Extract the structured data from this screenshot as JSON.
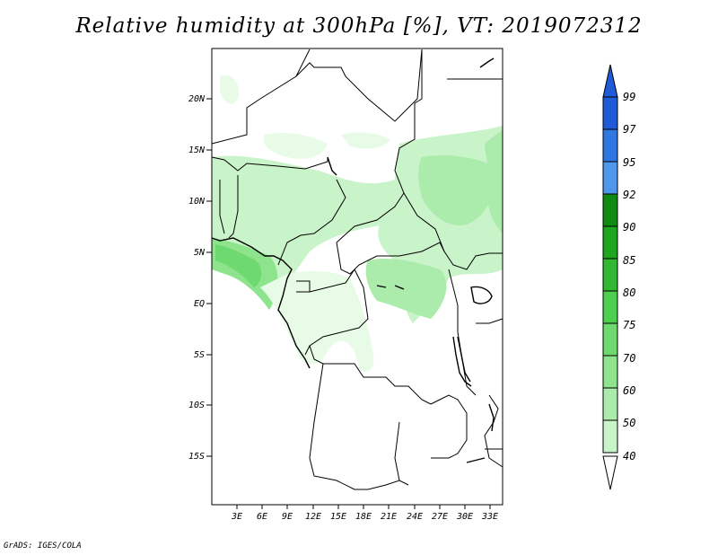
{
  "title": "Relative humidity at 300hPa [%], VT: 2019072312",
  "credit": "GrADS: IGES/COLA",
  "map": {
    "lat_labels": [
      "20N",
      "15N",
      "10N",
      "5N",
      "EQ",
      "5S",
      "10S",
      "15S"
    ],
    "lon_labels": [
      "3E",
      "6E",
      "9E",
      "12E",
      "15E",
      "18E",
      "21E",
      "24E",
      "27E",
      "30E",
      "33E"
    ]
  },
  "colorbar": {
    "labels": [
      "99",
      "97",
      "95",
      "92",
      "90",
      "85",
      "80",
      "75",
      "70",
      "60",
      "50",
      "40"
    ],
    "colors": [
      "#1f5bd6",
      "#2f77e0",
      "#4e97ec",
      "#108a10",
      "#1fa61f",
      "#33b833",
      "#4fcf4f",
      "#6ed96e",
      "#8de48d",
      "#abebab",
      "#c9f3c9",
      "#e7fbe7"
    ]
  },
  "colors": {
    "frame": "#000000",
    "background": "#ffffff"
  }
}
